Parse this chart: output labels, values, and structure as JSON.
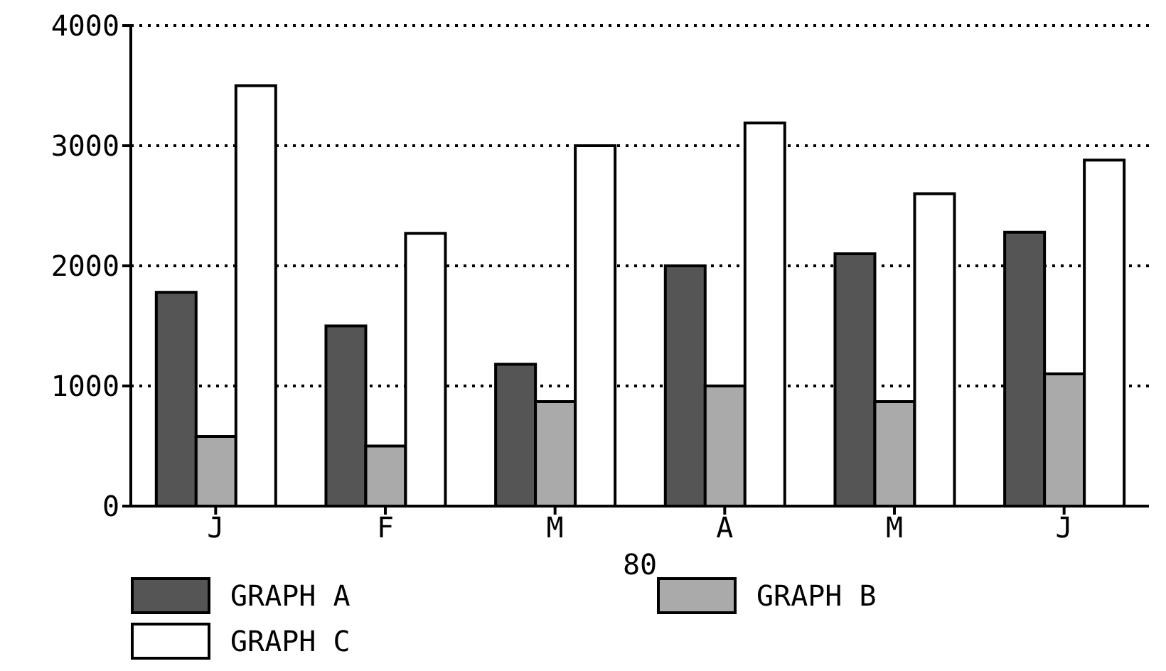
{
  "chart_data": {
    "type": "bar",
    "categories": [
      "J",
      "F",
      "M",
      "A",
      "M",
      "J"
    ],
    "xlabel": "80",
    "series": [
      {
        "name": "GRAPH A",
        "color": "#555555",
        "values": [
          1780,
          1500,
          1180,
          2000,
          2100,
          2280
        ]
      },
      {
        "name": "GRAPH B",
        "color": "#aaaaaa",
        "values": [
          580,
          500,
          870,
          1000,
          870,
          1100
        ]
      },
      {
        "name": "GRAPH C",
        "color": "#ffffff",
        "values": [
          3500,
          2270,
          3000,
          3190,
          2600,
          2880
        ]
      }
    ],
    "ylim": [
      0,
      4000
    ],
    "yticks": [
      0,
      1000,
      2000,
      3000,
      4000
    ],
    "grid": "y",
    "legend": "bottom"
  }
}
